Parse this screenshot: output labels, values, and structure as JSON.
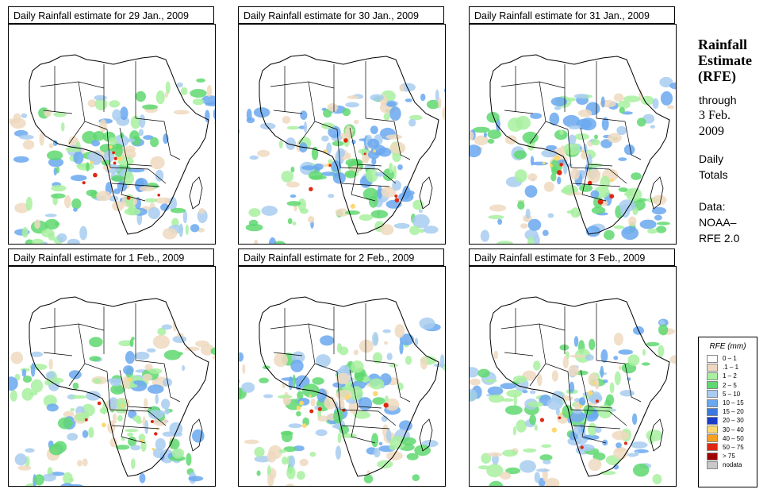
{
  "panels": [
    {
      "title": "Daily Rainfall estimate for  29 Jan., 2009"
    },
    {
      "title": "Daily Rainfall estimate for  30 Jan., 2009"
    },
    {
      "title": "Daily Rainfall estimate for  31 Jan., 2009"
    },
    {
      "title": "Daily Rainfall estimate for  1 Feb., 2009"
    },
    {
      "title": "Daily Rainfall estimate for  2 Feb., 2009"
    },
    {
      "title": "Daily Rainfall estimate for  3 Feb., 2009"
    }
  ],
  "sidebar": {
    "title_lines": [
      "Rainfall",
      "Estimate",
      "(RFE)"
    ],
    "through_label": "through",
    "through_date_lines": [
      "3 Feb.",
      "2009"
    ],
    "period_lines": [
      "Daily",
      "Totals"
    ],
    "source_lines": [
      "Data:",
      "NOAA–",
      "RFE 2.0"
    ]
  },
  "legend": {
    "title": "RFE (mm)",
    "items": [
      {
        "label": "0 – 1",
        "color": "#ffffff"
      },
      {
        "label": ".1 – 1",
        "color": "#eed9c0"
      },
      {
        "label": "1 – 2",
        "color": "#a8f0a0"
      },
      {
        "label": "2 – 5",
        "color": "#5fd870"
      },
      {
        "label": "5 – 10",
        "color": "#a8ccf0"
      },
      {
        "label": "10 – 15",
        "color": "#6aa8f0"
      },
      {
        "label": "15 – 20",
        "color": "#3c78e0"
      },
      {
        "label": "20 – 30",
        "color": "#1c3cc8"
      },
      {
        "label": "30 – 40",
        "color": "#fcd870"
      },
      {
        "label": "40 – 50",
        "color": "#f8a020"
      },
      {
        "label": "50 – 75",
        "color": "#e02810"
      },
      {
        "label": "> 75",
        "color": "#a00000"
      },
      {
        "label": "nodata",
        "color": "#c8c8c8"
      }
    ]
  }
}
